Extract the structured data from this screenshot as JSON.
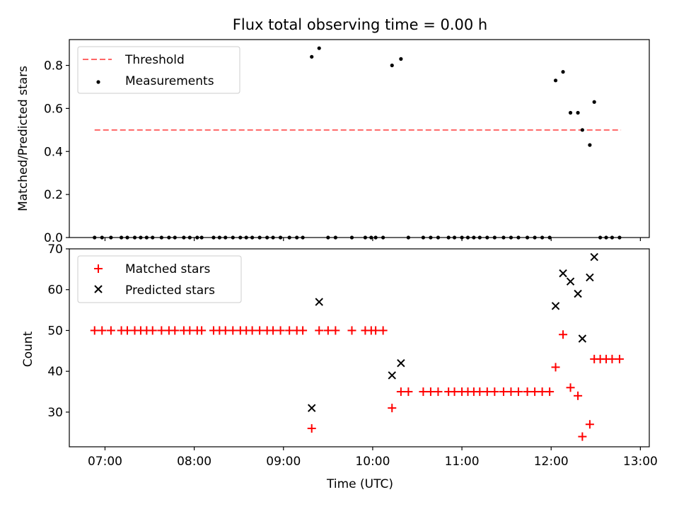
{
  "figure": {
    "title": "Flux total observing time = 0.00 h",
    "xlabel": "Time (UTC)",
    "xticks": [
      "07:00",
      "08:00",
      "09:00",
      "10:00",
      "11:00",
      "12:00",
      "13:00"
    ]
  },
  "chart_data": [
    {
      "type": "scatter",
      "panel": "top",
      "ylabel": "Matched/Predicted stars",
      "ylim": [
        0,
        0.92
      ],
      "yticks": [
        "0.0",
        "0.2",
        "0.4",
        "0.6",
        "0.8"
      ],
      "x_unit": "time UTC",
      "legend_position": "top-left",
      "threshold": {
        "name": "Threshold",
        "value": 0.5,
        "x_range": [
          "06:53",
          "12:47"
        ],
        "color": "#ff6666"
      },
      "series": [
        {
          "name": "Measurements",
          "marker": "dot",
          "color": "#000000",
          "x": [
            "06:53",
            "06:58",
            "07:04",
            "07:11",
            "07:15",
            "07:20",
            "07:24",
            "07:28",
            "07:32",
            "07:38",
            "07:43",
            "07:47",
            "07:53",
            "07:57",
            "08:02",
            "08:05",
            "08:13",
            "08:17",
            "08:21",
            "08:26",
            "08:31",
            "08:35",
            "08:39",
            "08:44",
            "08:49",
            "08:53",
            "08:58",
            "09:04",
            "09:09",
            "09:13",
            "09:19",
            "09:24",
            "09:30",
            "09:35",
            "09:46",
            "09:55",
            "09:59",
            "10:02",
            "10:07",
            "10:13",
            "10:19",
            "10:24",
            "10:34",
            "10:39",
            "10:44",
            "10:51",
            "10:55",
            "11:00",
            "11:04",
            "11:08",
            "11:12",
            "11:17",
            "11:22",
            "11:28",
            "11:33",
            "11:38",
            "11:44",
            "11:49",
            "11:54",
            "11:59",
            "12:03",
            "12:08",
            "12:13",
            "12:18",
            "12:21",
            "12:26",
            "12:29",
            "12:33",
            "12:37",
            "12:41",
            "12:46"
          ],
          "y": [
            0,
            0,
            0,
            0,
            0,
            0,
            0,
            0,
            0,
            0,
            0,
            0,
            0,
            0,
            0,
            0,
            0,
            0,
            0,
            0,
            0,
            0,
            0,
            0,
            0,
            0,
            0,
            0,
            0,
            0,
            0.84,
            0.88,
            0,
            0,
            0,
            0,
            0,
            0,
            0,
            0.8,
            0.83,
            0,
            0,
            0,
            0,
            0,
            0,
            0,
            0,
            0,
            0,
            0,
            0,
            0,
            0,
            0,
            0,
            0,
            0,
            0,
            0.73,
            0.77,
            0.58,
            0.58,
            0.5,
            0.43,
            0.63,
            0,
            0,
            0,
            0
          ]
        }
      ]
    },
    {
      "type": "scatter",
      "panel": "bottom",
      "ylabel": "Count",
      "ylim": [
        21.5,
        70
      ],
      "yticks": [
        "30",
        "40",
        "50",
        "60",
        "70"
      ],
      "x_unit": "time UTC",
      "legend_position": "top-left",
      "series": [
        {
          "name": "Matched stars",
          "marker": "plus",
          "color": "#ff0000",
          "x": [
            "06:53",
            "06:58",
            "07:04",
            "07:11",
            "07:15",
            "07:20",
            "07:24",
            "07:28",
            "07:32",
            "07:38",
            "07:43",
            "07:47",
            "07:53",
            "07:57",
            "08:02",
            "08:05",
            "08:13",
            "08:17",
            "08:21",
            "08:26",
            "08:31",
            "08:35",
            "08:39",
            "08:44",
            "08:49",
            "08:53",
            "08:58",
            "09:04",
            "09:09",
            "09:13",
            "09:19",
            "09:24",
            "09:30",
            "09:35",
            "09:46",
            "09:55",
            "09:59",
            "10:02",
            "10:07",
            "10:13",
            "10:19",
            "10:24",
            "10:34",
            "10:39",
            "10:44",
            "10:51",
            "10:55",
            "11:00",
            "11:04",
            "11:08",
            "11:12",
            "11:17",
            "11:22",
            "11:28",
            "11:33",
            "11:38",
            "11:44",
            "11:49",
            "11:54",
            "11:59",
            "12:03",
            "12:08",
            "12:13",
            "12:18",
            "12:21",
            "12:26",
            "12:29",
            "12:33",
            "12:37",
            "12:41",
            "12:46"
          ],
          "y": [
            50,
            50,
            50,
            50,
            50,
            50,
            50,
            50,
            50,
            50,
            50,
            50,
            50,
            50,
            50,
            50,
            50,
            50,
            50,
            50,
            50,
            50,
            50,
            50,
            50,
            50,
            50,
            50,
            50,
            50,
            26,
            50,
            50,
            50,
            50,
            50,
            50,
            50,
            50,
            31,
            35,
            35,
            35,
            35,
            35,
            35,
            35,
            35,
            35,
            35,
            35,
            35,
            35,
            35,
            35,
            35,
            35,
            35,
            35,
            35,
            41,
            49,
            36,
            34,
            24,
            27,
            43,
            43,
            43,
            43,
            43
          ]
        },
        {
          "name": "Predicted stars",
          "marker": "x",
          "color": "#000000",
          "x": [
            "09:19",
            "09:24",
            "10:13",
            "10:19",
            "12:03",
            "12:08",
            "12:13",
            "12:18",
            "12:21",
            "12:26",
            "12:29"
          ],
          "y": [
            31,
            57,
            39,
            42,
            56,
            64,
            62,
            59,
            48,
            63,
            68
          ]
        }
      ]
    }
  ]
}
